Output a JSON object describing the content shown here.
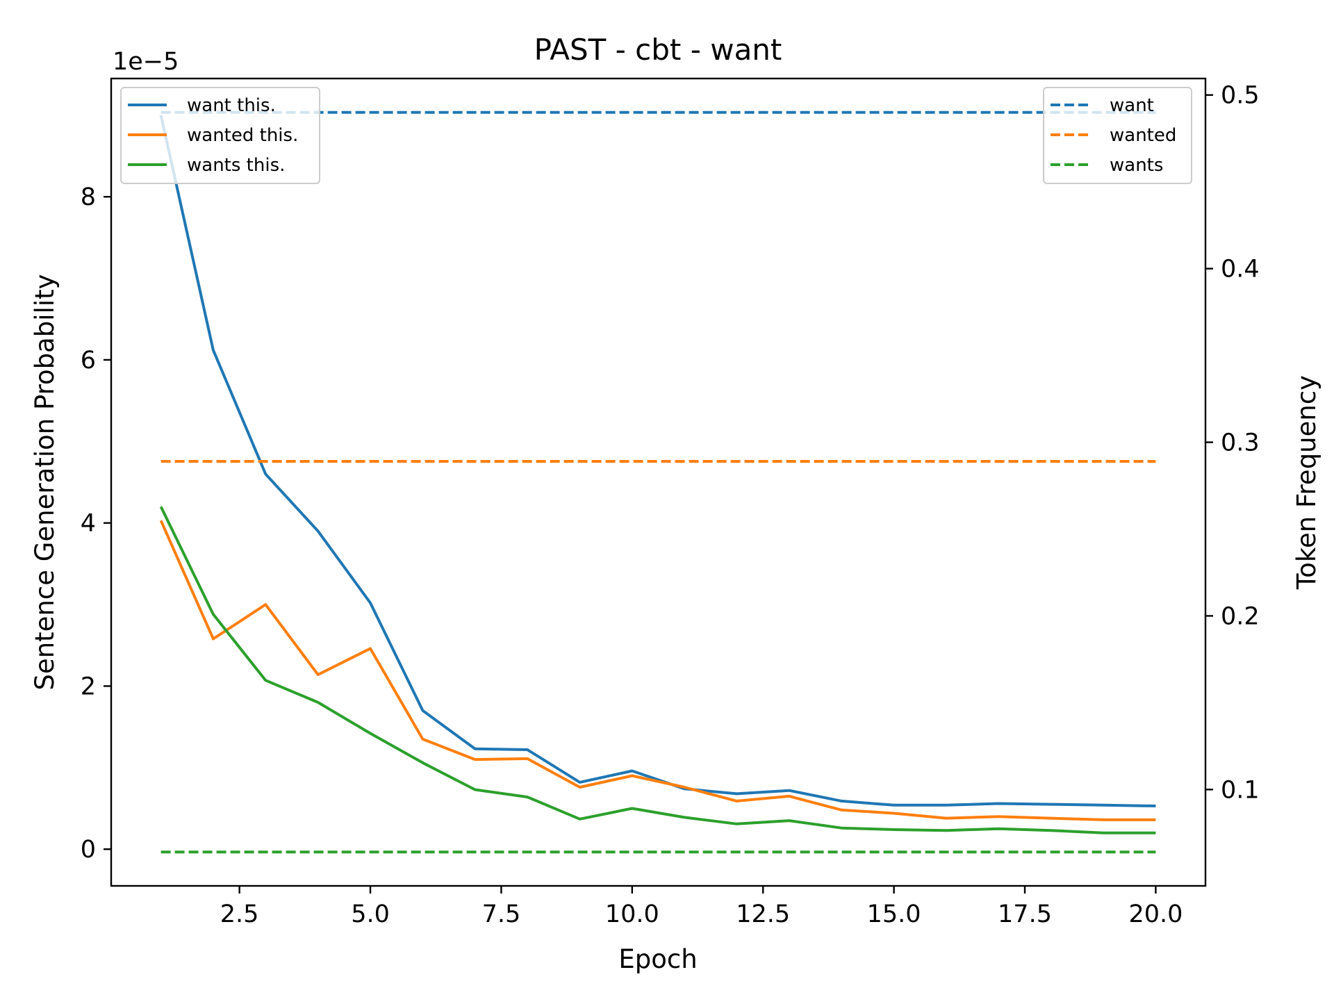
{
  "chart_data": {
    "type": "line",
    "title": "PAST - cbt - want",
    "xlabel": "Epoch",
    "ylabel": "Sentence Generation Probability",
    "y2label": "Token Frequency",
    "y_offset_label": "1e−5",
    "xlim": [
      0.05,
      20.95
    ],
    "ylim": [
      -0.45,
      9.45
    ],
    "y2lim": [
      0.0445,
      0.5095
    ],
    "x_ticks": [
      2.5,
      5.0,
      7.5,
      10.0,
      12.5,
      15.0,
      17.5,
      20.0
    ],
    "x_tick_labels": [
      "2.5",
      "5.0",
      "7.5",
      "10.0",
      "12.5",
      "15.0",
      "17.5",
      "20.0"
    ],
    "y_ticks": [
      0,
      2,
      4,
      6,
      8
    ],
    "y_tick_labels": [
      "0",
      "2",
      "4",
      "6",
      "8"
    ],
    "y2_ticks": [
      0.1,
      0.2,
      0.3,
      0.4,
      0.5
    ],
    "y2_tick_labels": [
      "0.1",
      "0.2",
      "0.3",
      "0.4",
      "0.5"
    ],
    "grid": false,
    "x": [
      1,
      2,
      3,
      4,
      5,
      6,
      7,
      8,
      9,
      10,
      11,
      12,
      13,
      14,
      15,
      16,
      17,
      18,
      19,
      20
    ],
    "series": [
      {
        "name": "want this.",
        "axis": "left",
        "style": "solid",
        "color": "#1f77b4",
        "values": [
          9.0,
          6.12,
          4.6,
          3.9,
          3.02,
          1.7,
          1.23,
          1.22,
          0.82,
          0.96,
          0.74,
          0.68,
          0.72,
          0.59,
          0.54,
          0.54,
          0.56,
          0.55,
          0.54,
          0.53
        ]
      },
      {
        "name": "wanted this.",
        "axis": "left",
        "style": "solid",
        "color": "#ff7f0e",
        "values": [
          4.03,
          2.58,
          3.0,
          2.14,
          2.46,
          1.35,
          1.1,
          1.11,
          0.76,
          0.9,
          0.76,
          0.59,
          0.65,
          0.48,
          0.44,
          0.38,
          0.4,
          0.38,
          0.36,
          0.36
        ]
      },
      {
        "name": "wants this.",
        "axis": "left",
        "style": "solid",
        "color": "#2ca02c",
        "values": [
          4.2,
          2.88,
          2.07,
          1.8,
          1.42,
          1.06,
          0.73,
          0.64,
          0.37,
          0.5,
          0.39,
          0.31,
          0.35,
          0.26,
          0.24,
          0.23,
          0.25,
          0.23,
          0.2,
          0.2
        ]
      },
      {
        "name": "want",
        "axis": "right",
        "style": "dashed",
        "color": "#1f77b4",
        "values": [
          0.49,
          0.49,
          0.49,
          0.49,
          0.49,
          0.49,
          0.49,
          0.49,
          0.49,
          0.49,
          0.49,
          0.49,
          0.49,
          0.49,
          0.49,
          0.49,
          0.49,
          0.49,
          0.49,
          0.49
        ]
      },
      {
        "name": "wanted",
        "axis": "right",
        "style": "dashed",
        "color": "#ff7f0e",
        "values": [
          0.289,
          0.289,
          0.289,
          0.289,
          0.289,
          0.289,
          0.289,
          0.289,
          0.289,
          0.289,
          0.289,
          0.289,
          0.289,
          0.289,
          0.289,
          0.289,
          0.289,
          0.289,
          0.289,
          0.289
        ]
      },
      {
        "name": "wants",
        "axis": "right",
        "style": "dashed",
        "color": "#2ca02c",
        "values": [
          0.064,
          0.064,
          0.064,
          0.064,
          0.064,
          0.064,
          0.064,
          0.064,
          0.064,
          0.064,
          0.064,
          0.064,
          0.064,
          0.064,
          0.064,
          0.064,
          0.064,
          0.064,
          0.064,
          0.064
        ]
      }
    ],
    "legends": [
      {
        "placement": "top-left",
        "entries": [
          "want this.",
          "wanted this.",
          "wants this."
        ]
      },
      {
        "placement": "top-right",
        "entries": [
          "want",
          "wanted",
          "wants"
        ]
      }
    ]
  }
}
